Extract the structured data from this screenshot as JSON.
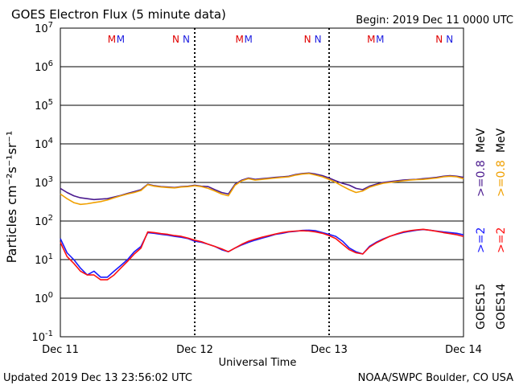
{
  "header": {
    "title": "GOES Electron Flux (5 minute data)",
    "begin": "Begin: 2019 Dec 11 0000 UTC"
  },
  "footer": {
    "updated": "Updated 2019 Dec 13 23:56:02 UTC",
    "source": "NOAA/SWPC Boulder, CO USA"
  },
  "markers": {
    "m": "M",
    "n": "N",
    "m_color": "#e00000",
    "m2_color": "#2020e0",
    "n_color": "#e00000",
    "n2_color": "#2020e0"
  },
  "colors": {
    "goes15_08": "#4b1b8f",
    "goes14_08": "#f0a000",
    "goes15_2": "#1a1aff",
    "goes14_2": "#ff1010",
    "threshold": "#000000"
  },
  "chart_data": {
    "type": "line",
    "xlabel": "Universal Time",
    "ylabel": "Particles cm⁻²s⁻¹sr⁻¹",
    "scale": "log",
    "ylim": [
      0.1,
      10000000
    ],
    "xlim": [
      "2019-12-11",
      "2019-12-14"
    ],
    "x_ticks": [
      "Dec 11",
      "Dec 12",
      "Dec 13",
      "Dec 14"
    ],
    "y_ticks": [
      {
        "base": "10",
        "exp": "7"
      },
      {
        "base": "10",
        "exp": "6"
      },
      {
        "base": "10",
        "exp": "5"
      },
      {
        "base": "10",
        "exp": "4"
      },
      {
        "base": "10",
        "exp": "3"
      },
      {
        "base": "10",
        "exp": "2"
      },
      {
        "base": "10",
        "exp": "1"
      },
      {
        "base": "10",
        "exp": "0"
      },
      {
        "base": "10",
        "exp": "-1"
      }
    ],
    "threshold": 1000,
    "right_labels": {
      "goes15": "GOES15",
      "goes14": "GOES14",
      "g15_2": ">=2",
      "g14_2": ">=2",
      "g15_08": ">=0.8",
      "g14_08": ">=0.8",
      "unit": "MeV"
    },
    "marker_days": [
      {
        "m_day": 0.4,
        "n_day": 0.88
      },
      {
        "m_day": 1.35,
        "n_day": 1.86
      },
      {
        "m_day": 2.33,
        "n_day": 2.84
      }
    ],
    "x_days": [
      0,
      0.05,
      0.1,
      0.15,
      0.2,
      0.25,
      0.3,
      0.35,
      0.4,
      0.45,
      0.5,
      0.55,
      0.6,
      0.65,
      0.7,
      0.75,
      0.8,
      0.85,
      0.9,
      0.95,
      1.0,
      1.05,
      1.1,
      1.15,
      1.2,
      1.25,
      1.3,
      1.35,
      1.4,
      1.45,
      1.5,
      1.55,
      1.6,
      1.65,
      1.7,
      1.75,
      1.8,
      1.85,
      1.9,
      1.95,
      2.0,
      2.05,
      2.1,
      2.15,
      2.2,
      2.25,
      2.3,
      2.35,
      2.4,
      2.45,
      2.5,
      2.55,
      2.6,
      2.65,
      2.7,
      2.75,
      2.8,
      2.85,
      2.9,
      2.95,
      3.0
    ],
    "series": [
      {
        "name": "GOES15 >=0.8 MeV",
        "values": [
          700,
          550,
          450,
          400,
          380,
          360,
          370,
          380,
          420,
          460,
          520,
          580,
          650,
          900,
          820,
          780,
          760,
          740,
          780,
          800,
          850,
          800,
          780,
          650,
          550,
          500,
          900,
          1150,
          1300,
          1200,
          1250,
          1300,
          1350,
          1400,
          1450,
          1600,
          1700,
          1750,
          1650,
          1500,
          1300,
          1100,
          950,
          850,
          700,
          650,
          800,
          900,
          1000,
          1050,
          1100,
          1150,
          1180,
          1200,
          1250,
          1300,
          1350,
          1450,
          1500,
          1450,
          1350
        ]
      },
      {
        "name": "GOES14 >=0.8 MeV",
        "values": [
          500,
          380,
          300,
          270,
          280,
          300,
          320,
          350,
          400,
          450,
          500,
          550,
          620,
          880,
          800,
          760,
          740,
          720,
          760,
          780,
          820,
          780,
          700,
          600,
          500,
          450,
          850,
          1100,
          1250,
          1150,
          1200,
          1250,
          1300,
          1350,
          1400,
          1550,
          1650,
          1700,
          1550,
          1400,
          1200,
          1000,
          800,
          650,
          550,
          600,
          750,
          850,
          950,
          1000,
          1050,
          1100,
          1150,
          1180,
          1200,
          1250,
          1300,
          1400,
          1450,
          1400,
          1250
        ]
      },
      {
        "name": "GOES15 >=2 MeV",
        "values": [
          35,
          15,
          10,
          6,
          4,
          5,
          3.5,
          3.5,
          5,
          7,
          10,
          16,
          22,
          50,
          48,
          45,
          43,
          40,
          38,
          35,
          30,
          28,
          25,
          22,
          18,
          16,
          20,
          24,
          28,
          32,
          36,
          40,
          45,
          48,
          52,
          54,
          57,
          58,
          56,
          50,
          45,
          40,
          30,
          20,
          16,
          14,
          22,
          28,
          34,
          40,
          45,
          50,
          54,
          58,
          60,
          58,
          55,
          52,
          50,
          48,
          44
        ]
      },
      {
        "name": "GOES14 >=2 MeV",
        "values": [
          28,
          12,
          8,
          5,
          4,
          4,
          3,
          3,
          4,
          6,
          9,
          14,
          20,
          52,
          50,
          47,
          45,
          42,
          40,
          36,
          32,
          29,
          25,
          22,
          19,
          16,
          20,
          25,
          30,
          34,
          38,
          42,
          46,
          50,
          53,
          55,
          56,
          55,
          52,
          48,
          42,
          35,
          25,
          18,
          15,
          14,
          21,
          27,
          33,
          40,
          46,
          52,
          56,
          59,
          61,
          58,
          54,
          50,
          47,
          44,
          40
        ]
      }
    ]
  }
}
